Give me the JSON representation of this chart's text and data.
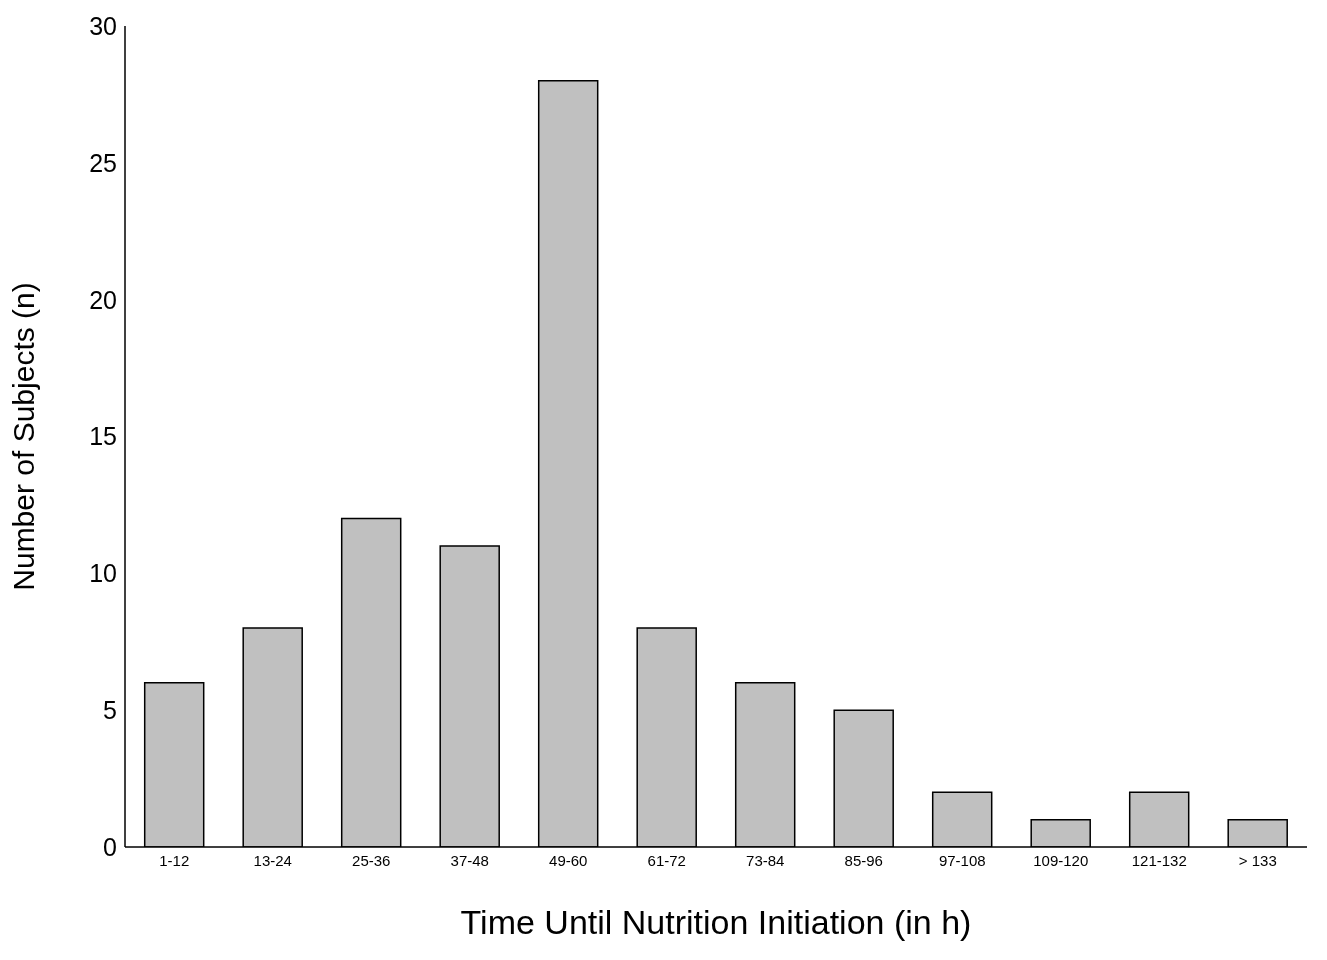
{
  "chart_data": {
    "type": "bar",
    "xlabel": "Time Until Nutrition Initiation (in h)",
    "ylabel": "Number of Subjects (n)",
    "categories": [
      "1-12",
      "13-24",
      "25-36",
      "37-48",
      "49-60",
      "61-72",
      "73-84",
      "85-96",
      "97-108",
      "109-120",
      "121-132",
      "> 133"
    ],
    "values": [
      6,
      8,
      12,
      11,
      28,
      8,
      6,
      5,
      2,
      1,
      2,
      1
    ],
    "color": "#c0c0c0",
    "ylim": [
      0,
      30
    ],
    "yticks": [
      0,
      5,
      10,
      15,
      20,
      25,
      30
    ],
    "grid": false,
    "legend": false
  }
}
